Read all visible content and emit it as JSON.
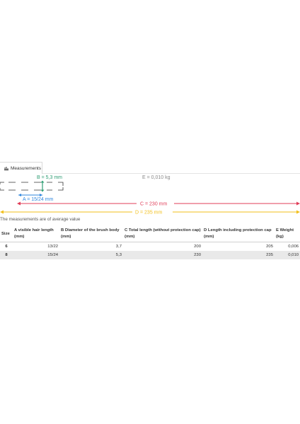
{
  "tab": {
    "label": "Measurements"
  },
  "diagram": {
    "label_b": "B = 5,3 mm",
    "label_a": "A = 15/24 mm",
    "label_e": "E = 0,010 kg",
    "label_c": "C = 230 mm",
    "label_d": "D = 235 mm",
    "colors": {
      "a": "#2e86de",
      "b": "#2f9e74",
      "c": "#e03d58",
      "d": "#f2bf1b",
      "e": "#888888"
    }
  },
  "note": "The measurements are of average value",
  "table": {
    "headers": [
      "Size",
      "A visible hair length (mm)",
      "B Diameter of the brush body (mm)",
      "C Total length (without protection cap) (mm)",
      "D Length including protection cap (mm)",
      "E Weight (kg)"
    ],
    "rows": [
      {
        "size": "6",
        "a": "13/22",
        "b": "3,7",
        "c": "200",
        "d": "205",
        "e": "0,006"
      },
      {
        "size": "8",
        "a": "15/24",
        "b": "5,3",
        "c": "230",
        "d": "235",
        "e": "0,010"
      }
    ]
  }
}
